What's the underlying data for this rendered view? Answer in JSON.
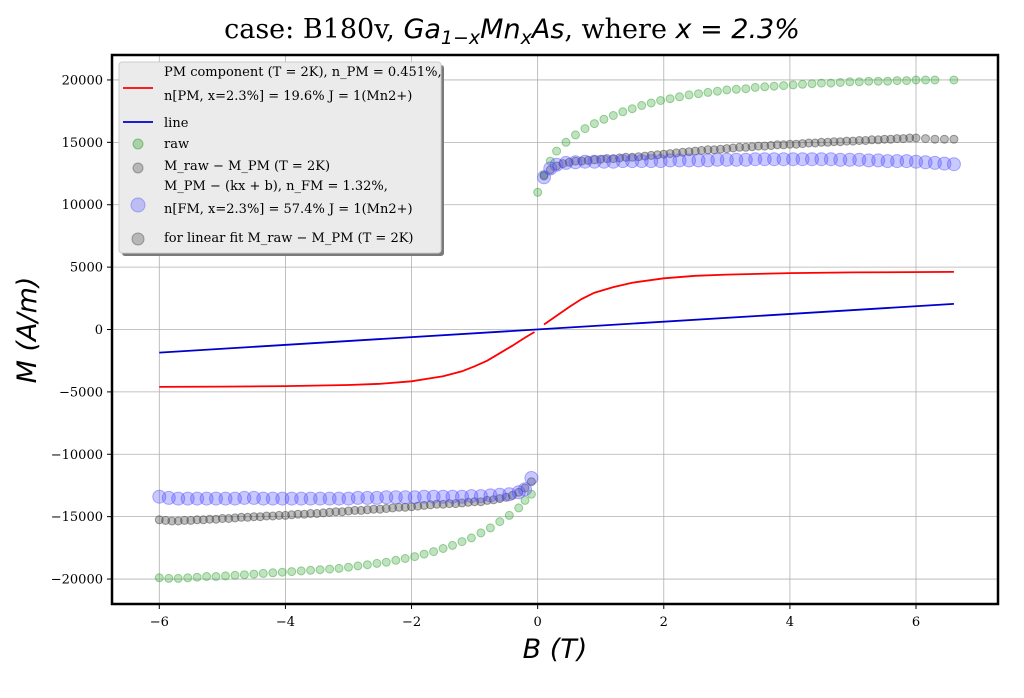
{
  "chart_data": {
    "type": "scatter",
    "title_prefix": "case: B180v, ",
    "title_math": "Ga",
    "title_sub": "1−x",
    "title_math2": "Mn",
    "title_sub2": "x",
    "title_math3": "As",
    "title_suffix": ", where ",
    "title_eq": "x = 2.3%",
    "xlabel": "B (T)",
    "ylabel": "M (A/m)",
    "xlim": [
      -6.75,
      7.3
    ],
    "ylim": [
      -22000,
      22000
    ],
    "xticks": [
      -6,
      -4,
      -2,
      0,
      2,
      4,
      6
    ],
    "yticks": [
      -20000,
      -15000,
      -10000,
      -5000,
      0,
      5000,
      10000,
      15000,
      20000
    ],
    "xtick_labels": [
      "−6",
      "−4",
      "−2",
      "0",
      "2",
      "4",
      "6"
    ],
    "ytick_labels": [
      "−20000",
      "−15000",
      "−10000",
      "−5000",
      "0",
      "5000",
      "10000",
      "15000",
      "20000"
    ],
    "grid": true,
    "legend_position": "top-left",
    "legend": [
      {
        "kind": "line",
        "color": "#ff0000",
        "line1": "PM component (T = 2K), n_PM = 0.451%,",
        "line2": "n[PM, x=2.3%] = 19.6% J = 1(Mn2+)"
      },
      {
        "kind": "line",
        "color": "#0000cc",
        "line1": "line",
        "line2": ""
      },
      {
        "kind": "marker",
        "color": "#2ca02c",
        "size": 5,
        "line1": "raw",
        "line2": ""
      },
      {
        "kind": "marker",
        "color": "#555555",
        "size": 5,
        "line1": "M_raw − M_PM (T = 2K)",
        "line2": ""
      },
      {
        "kind": "marker",
        "color": "#6666ff",
        "size": 7,
        "line1": "M_PM − (kx + b), n_FM = 1.32%,",
        "line2": "n[FM, x=2.3%] = 57.4% J = 1(Mn2+)"
      },
      {
        "kind": "marker",
        "color": "#555555",
        "size": 6,
        "line1": "for linear fit M_raw − M_PM (T = 2K)",
        "line2": ""
      }
    ],
    "series": [
      {
        "name": "PM component",
        "kind": "line",
        "color": "#ff0000",
        "branches": [
          {
            "x": [
              -6,
              -5,
              -4,
              -3,
              -2.5,
              -2,
              -1.5,
              -1.2,
              -1.0,
              -0.8,
              -0.6,
              -0.4,
              -0.2,
              -0.05
            ],
            "y": [
              -4600,
              -4580,
              -4540,
              -4450,
              -4350,
              -4150,
              -3750,
              -3350,
              -2950,
              -2500,
              -1900,
              -1300,
              -650,
              -200
            ]
          },
          {
            "x": [
              0.1,
              0.3,
              0.5,
              0.7,
              0.9,
              1.2,
              1.5,
              2,
              2.5,
              3,
              4,
              5,
              6.6
            ],
            "y": [
              400,
              1100,
              1800,
              2450,
              2950,
              3400,
              3750,
              4100,
              4300,
              4400,
              4520,
              4580,
              4620
            ]
          }
        ]
      },
      {
        "name": "line",
        "kind": "line",
        "color": "#0000cc",
        "branches": [
          {
            "x": [
              -6,
              6.6
            ],
            "y": [
              -1850,
              2050
            ]
          }
        ]
      },
      {
        "name": "raw",
        "kind": "scatter",
        "color": "#2ca02c",
        "opacity": 0.3,
        "radius": 4,
        "x": [
          -6,
          -5.85,
          -5.7,
          -5.55,
          -5.4,
          -5.25,
          -5.1,
          -4.95,
          -4.8,
          -4.65,
          -4.5,
          -4.35,
          -4.2,
          -4.05,
          -3.9,
          -3.75,
          -3.6,
          -3.45,
          -3.3,
          -3.15,
          -3.0,
          -2.85,
          -2.7,
          -2.55,
          -2.4,
          -2.25,
          -2.1,
          -1.95,
          -1.8,
          -1.65,
          -1.5,
          -1.35,
          -1.2,
          -1.05,
          -0.9,
          -0.75,
          -0.6,
          -0.45,
          -0.3,
          -0.2,
          -0.1,
          0,
          0.1,
          0.2,
          0.3,
          0.45,
          0.6,
          0.75,
          0.9,
          1.05,
          1.2,
          1.35,
          1.5,
          1.65,
          1.8,
          1.95,
          2.1,
          2.25,
          2.4,
          2.55,
          2.7,
          2.85,
          3.0,
          3.15,
          3.3,
          3.45,
          3.6,
          3.75,
          3.9,
          4.05,
          4.2,
          4.35,
          4.5,
          4.65,
          4.8,
          4.95,
          5.1,
          5.25,
          5.4,
          5.55,
          5.7,
          5.85,
          6.0,
          6.15,
          6.3,
          6.6
        ],
        "y": [
          -19900,
          -19950,
          -19950,
          -19900,
          -19850,
          -19800,
          -19800,
          -19750,
          -19700,
          -19650,
          -19600,
          -19550,
          -19500,
          -19450,
          -19400,
          -19350,
          -19300,
          -19250,
          -19200,
          -19150,
          -19050,
          -18950,
          -18850,
          -18750,
          -18650,
          -18500,
          -18350,
          -18200,
          -18000,
          -17800,
          -17550,
          -17300,
          -17000,
          -16700,
          -16300,
          -15900,
          -15400,
          -14900,
          -14300,
          -13700,
          -13200,
          11000,
          12400,
          13500,
          14300,
          15000,
          15600,
          16100,
          16500,
          16850,
          17150,
          17450,
          17700,
          17950,
          18150,
          18350,
          18500,
          18650,
          18800,
          18900,
          19000,
          19100,
          19200,
          19250,
          19300,
          19400,
          19450,
          19500,
          19550,
          19600,
          19650,
          19700,
          19750,
          19750,
          19800,
          19850,
          19850,
          19900,
          19900,
          19900,
          19950,
          19950,
          20000,
          20000,
          20000,
          20000
        ]
      },
      {
        "name": "M_raw − M_PM (T = 2K)",
        "kind": "scatter",
        "color": "#444444",
        "opacity": 0.35,
        "radius": 4,
        "x": [
          -6,
          -5.9,
          -5.8,
          -5.7,
          -5.6,
          -5.5,
          -5.4,
          -5.3,
          -5.2,
          -5.1,
          -5.0,
          -4.9,
          -4.8,
          -4.7,
          -4.6,
          -4.5,
          -4.4,
          -4.3,
          -4.2,
          -4.1,
          -4.0,
          -3.9,
          -3.8,
          -3.7,
          -3.6,
          -3.5,
          -3.4,
          -3.3,
          -3.2,
          -3.1,
          -3.0,
          -2.9,
          -2.8,
          -2.7,
          -2.6,
          -2.5,
          -2.4,
          -2.3,
          -2.2,
          -2.1,
          -2.0,
          -1.9,
          -1.8,
          -1.7,
          -1.6,
          -1.5,
          -1.4,
          -1.3,
          -1.2,
          -1.1,
          -1.0,
          -0.9,
          -0.8,
          -0.7,
          -0.6,
          -0.5,
          -0.4,
          -0.3,
          -0.2,
          -0.1,
          0.1,
          0.2,
          0.3,
          0.4,
          0.5,
          0.6,
          0.7,
          0.8,
          0.9,
          1.0,
          1.1,
          1.2,
          1.3,
          1.4,
          1.5,
          1.6,
          1.7,
          1.8,
          1.9,
          2.0,
          2.1,
          2.2,
          2.3,
          2.4,
          2.5,
          2.6,
          2.7,
          2.8,
          2.9,
          3.0,
          3.1,
          3.2,
          3.3,
          3.4,
          3.5,
          3.6,
          3.7,
          3.8,
          3.9,
          4.0,
          4.1,
          4.2,
          4.3,
          4.4,
          4.5,
          4.6,
          4.7,
          4.8,
          4.9,
          5.0,
          5.1,
          5.2,
          5.3,
          5.4,
          5.5,
          5.6,
          5.7,
          5.8,
          5.9,
          6.0,
          6.15,
          6.3,
          6.45,
          6.6
        ],
        "y": [
          -15250,
          -15300,
          -15350,
          -15350,
          -15300,
          -15300,
          -15250,
          -15250,
          -15200,
          -15200,
          -15150,
          -15150,
          -15100,
          -15050,
          -15050,
          -15000,
          -15000,
          -14950,
          -14950,
          -14900,
          -14900,
          -14850,
          -14800,
          -14800,
          -14750,
          -14750,
          -14700,
          -14650,
          -14600,
          -14600,
          -14550,
          -14500,
          -14500,
          -14450,
          -14400,
          -14400,
          -14350,
          -14300,
          -14250,
          -14250,
          -14200,
          -14150,
          -14100,
          -14050,
          -14000,
          -14000,
          -13950,
          -13950,
          -13900,
          -13850,
          -13800,
          -13800,
          -13700,
          -13650,
          -13550,
          -13450,
          -13300,
          -13050,
          -12700,
          -12200,
          12300,
          12800,
          13100,
          13300,
          13400,
          13500,
          13500,
          13550,
          13600,
          13650,
          13700,
          13700,
          13750,
          13800,
          13800,
          13850,
          13900,
          13950,
          14000,
          14050,
          14100,
          14150,
          14200,
          14250,
          14300,
          14350,
          14400,
          14400,
          14450,
          14500,
          14550,
          14600,
          14600,
          14650,
          14700,
          14700,
          14750,
          14800,
          14800,
          14850,
          14850,
          14900,
          14950,
          14950,
          15000,
          15000,
          15050,
          15050,
          15100,
          15100,
          15150,
          15150,
          15200,
          15200,
          15250,
          15250,
          15300,
          15300,
          15350,
          15350,
          15300,
          15250,
          15250,
          15250
        ]
      },
      {
        "name": "M_PM − (kx + b)",
        "kind": "scatter",
        "color": "#4d4dff",
        "opacity": 0.3,
        "radius": 6.5,
        "x": [
          -6,
          -5.85,
          -5.7,
          -5.55,
          -5.4,
          -5.25,
          -5.1,
          -4.95,
          -4.8,
          -4.65,
          -4.5,
          -4.35,
          -4.2,
          -4.05,
          -3.9,
          -3.75,
          -3.6,
          -3.45,
          -3.3,
          -3.15,
          -3.0,
          -2.85,
          -2.7,
          -2.55,
          -2.4,
          -2.25,
          -2.1,
          -1.95,
          -1.8,
          -1.65,
          -1.5,
          -1.35,
          -1.2,
          -1.05,
          -0.9,
          -0.75,
          -0.6,
          -0.45,
          -0.3,
          -0.2,
          -0.1,
          0.1,
          0.2,
          0.3,
          0.45,
          0.6,
          0.75,
          0.9,
          1.05,
          1.2,
          1.35,
          1.5,
          1.65,
          1.8,
          1.95,
          2.1,
          2.25,
          2.4,
          2.55,
          2.7,
          2.85,
          3.0,
          3.15,
          3.3,
          3.45,
          3.6,
          3.75,
          3.9,
          4.05,
          4.2,
          4.35,
          4.5,
          4.65,
          4.8,
          4.95,
          5.1,
          5.25,
          5.4,
          5.55,
          5.7,
          5.85,
          6.0,
          6.15,
          6.3,
          6.45,
          6.6
        ],
        "y": [
          -13400,
          -13500,
          -13550,
          -13550,
          -13550,
          -13550,
          -13550,
          -13550,
          -13550,
          -13500,
          -13500,
          -13550,
          -13550,
          -13550,
          -13550,
          -13550,
          -13550,
          -13550,
          -13550,
          -13550,
          -13550,
          -13500,
          -13500,
          -13500,
          -13450,
          -13450,
          -13450,
          -13450,
          -13400,
          -13400,
          -13400,
          -13400,
          -13400,
          -13350,
          -13350,
          -13300,
          -13250,
          -13200,
          -13050,
          -12800,
          -11900,
          12200,
          12900,
          13200,
          13350,
          13400,
          13450,
          13450,
          13450,
          13450,
          13500,
          13500,
          13500,
          13500,
          13500,
          13550,
          13550,
          13550,
          13550,
          13550,
          13600,
          13600,
          13600,
          13600,
          13650,
          13650,
          13650,
          13650,
          13650,
          13650,
          13650,
          13650,
          13650,
          13600,
          13600,
          13600,
          13550,
          13550,
          13500,
          13500,
          13500,
          13450,
          13400,
          13350,
          13300,
          13250
        ]
      }
    ]
  }
}
